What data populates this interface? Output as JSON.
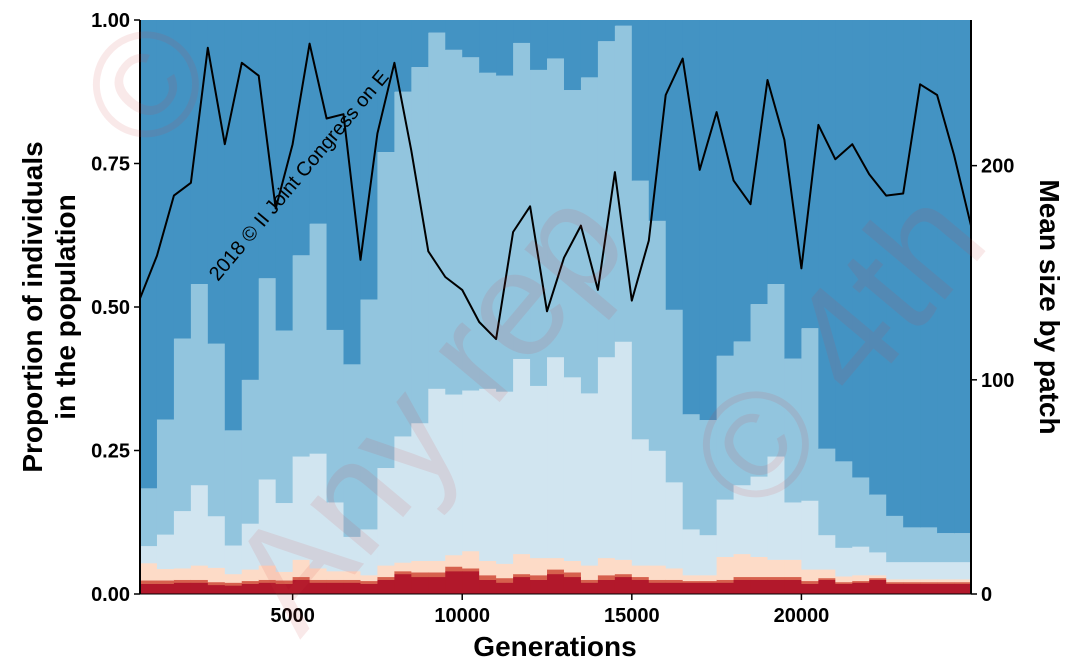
{
  "chart_data": {
    "type": "area",
    "xlabel": "Generations",
    "ylabel_lines": [
      "Proportion of individuals",
      "in the population"
    ],
    "y2label": "Mean size by patch",
    "xlim": [
      500,
      25000
    ],
    "ylim": [
      0,
      1
    ],
    "y2lim": [
      0,
      268
    ],
    "x_ticks": [
      "5000",
      "10000",
      "15000",
      "20000"
    ],
    "x_tick_values": [
      5000,
      10000,
      15000,
      20000
    ],
    "y_ticks": [
      "0.00",
      "0.25",
      "0.50",
      "0.75",
      "1.00"
    ],
    "y_tick_values": [
      0,
      0.25,
      0.5,
      0.75,
      1
    ],
    "y2_ticks": [
      "0",
      "100",
      "200"
    ],
    "y2_tick_values": [
      0,
      100,
      200
    ],
    "grid": false,
    "legend": "none",
    "colors": {
      "class_1": "#b2182b",
      "class_2": "#d6604d",
      "class_3": "#fddbc7",
      "class_4": "#d1e5f0",
      "class_5": "#92c5de",
      "class_6": "#4393c3",
      "line": "#000000"
    },
    "stack": {
      "x": [
        500,
        1000,
        1500,
        2000,
        2500,
        3000,
        3500,
        4000,
        4500,
        5000,
        5500,
        6000,
        6500,
        7000,
        7500,
        8000,
        8500,
        9000,
        9500,
        10000,
        10500,
        11000,
        11500,
        12000,
        12500,
        13000,
        13500,
        14000,
        14500,
        15000,
        15500,
        16000,
        16500,
        17000,
        17500,
        18000,
        18500,
        19000,
        19500,
        20000,
        20500,
        21000,
        21500,
        22000,
        22500,
        23000,
        23500,
        24000,
        24500
      ],
      "class_1": [
        0.018,
        0.018,
        0.02,
        0.02,
        0.016,
        0.015,
        0.018,
        0.02,
        0.018,
        0.025,
        0.02,
        0.02,
        0.02,
        0.018,
        0.025,
        0.035,
        0.03,
        0.03,
        0.04,
        0.04,
        0.025,
        0.02,
        0.03,
        0.025,
        0.035,
        0.03,
        0.02,
        0.025,
        0.03,
        0.025,
        0.02,
        0.02,
        0.02,
        0.02,
        0.02,
        0.025,
        0.025,
        0.025,
        0.025,
        0.018,
        0.025,
        0.018,
        0.02,
        0.025,
        0.018,
        0.018,
        0.018,
        0.018,
        0.018
      ],
      "class_2": [
        0.006,
        0.006,
        0.005,
        0.005,
        0.005,
        0.005,
        0.005,
        0.005,
        0.006,
        0.005,
        0.005,
        0.005,
        0.005,
        0.005,
        0.005,
        0.005,
        0.008,
        0.008,
        0.008,
        0.005,
        0.008,
        0.008,
        0.005,
        0.008,
        0.008,
        0.008,
        0.005,
        0.008,
        0.005,
        0.005,
        0.005,
        0.005,
        0.003,
        0.003,
        0.005,
        0.005,
        0.005,
        0.005,
        0.005,
        0.005,
        0.003,
        0.003,
        0.003,
        0.003,
        0.003,
        0.003,
        0.003,
        0.003,
        0.003
      ],
      "class_3": [
        0.03,
        0.02,
        0.02,
        0.025,
        0.025,
        0.015,
        0.02,
        0.025,
        0.015,
        0.03,
        0.02,
        0.015,
        0.015,
        0.01,
        0.02,
        0.015,
        0.02,
        0.02,
        0.02,
        0.03,
        0.025,
        0.025,
        0.035,
        0.03,
        0.02,
        0.02,
        0.025,
        0.03,
        0.025,
        0.02,
        0.025,
        0.02,
        0.01,
        0.01,
        0.04,
        0.04,
        0.035,
        0.03,
        0.03,
        0.02,
        0.015,
        0.01,
        0.01,
        0.005,
        0.005,
        0.005,
        0.005,
        0.005,
        0.005
      ],
      "class_4": [
        0.03,
        0.06,
        0.1,
        0.14,
        0.09,
        0.05,
        0.08,
        0.15,
        0.12,
        0.18,
        0.2,
        0.12,
        0.06,
        0.08,
        0.17,
        0.22,
        0.24,
        0.3,
        0.28,
        0.28,
        0.3,
        0.3,
        0.34,
        0.3,
        0.35,
        0.32,
        0.3,
        0.35,
        0.38,
        0.22,
        0.2,
        0.15,
        0.08,
        0.07,
        0.1,
        0.12,
        0.14,
        0.18,
        0.1,
        0.12,
        0.06,
        0.05,
        0.05,
        0.04,
        0.03,
        0.03,
        0.03,
        0.03,
        0.03
      ],
      "class_5": [
        0.1,
        0.2,
        0.3,
        0.35,
        0.3,
        0.2,
        0.25,
        0.35,
        0.3,
        0.35,
        0.4,
        0.3,
        0.3,
        0.4,
        0.55,
        0.6,
        0.62,
        0.62,
        0.6,
        0.58,
        0.55,
        0.55,
        0.55,
        0.55,
        0.52,
        0.5,
        0.55,
        0.55,
        0.55,
        0.45,
        0.4,
        0.3,
        0.2,
        0.2,
        0.25,
        0.25,
        0.3,
        0.3,
        0.25,
        0.3,
        0.15,
        0.15,
        0.12,
        0.1,
        0.08,
        0.06,
        0.06,
        0.05,
        0.05
      ]
    },
    "line": {
      "name": "Mean size by patch",
      "x": [
        500,
        1000,
        1500,
        2000,
        2500,
        3000,
        3500,
        4000,
        4500,
        5000,
        5500,
        6000,
        6500,
        7000,
        7500,
        8000,
        8500,
        9000,
        9500,
        10000,
        10500,
        11000,
        11500,
        12000,
        12500,
        13000,
        13500,
        14000,
        14500,
        15000,
        15500,
        16000,
        16500,
        17000,
        17500,
        18000,
        18500,
        19000,
        19500,
        20000,
        20500,
        21000,
        21500,
        22000,
        22500,
        23000,
        23500,
        24000,
        24500,
        25000
      ],
      "y": [
        138,
        158,
        186,
        192,
        255,
        210,
        248,
        242,
        180,
        210,
        257,
        222,
        224,
        156,
        215,
        248,
        207,
        160,
        148,
        142,
        127,
        119,
        169,
        181,
        132,
        157,
        172,
        142,
        197,
        137,
        165,
        233,
        250,
        198,
        225,
        193,
        182,
        240,
        212,
        152,
        219,
        203,
        210,
        196,
        186,
        187,
        238,
        233,
        205,
        172
      ]
    }
  },
  "watermark": {
    "line_1": "2018 © II Joint Congress on E",
    "big_1": "Any rep",
    "big_2": "© 4th",
    "big_3": "©"
  }
}
